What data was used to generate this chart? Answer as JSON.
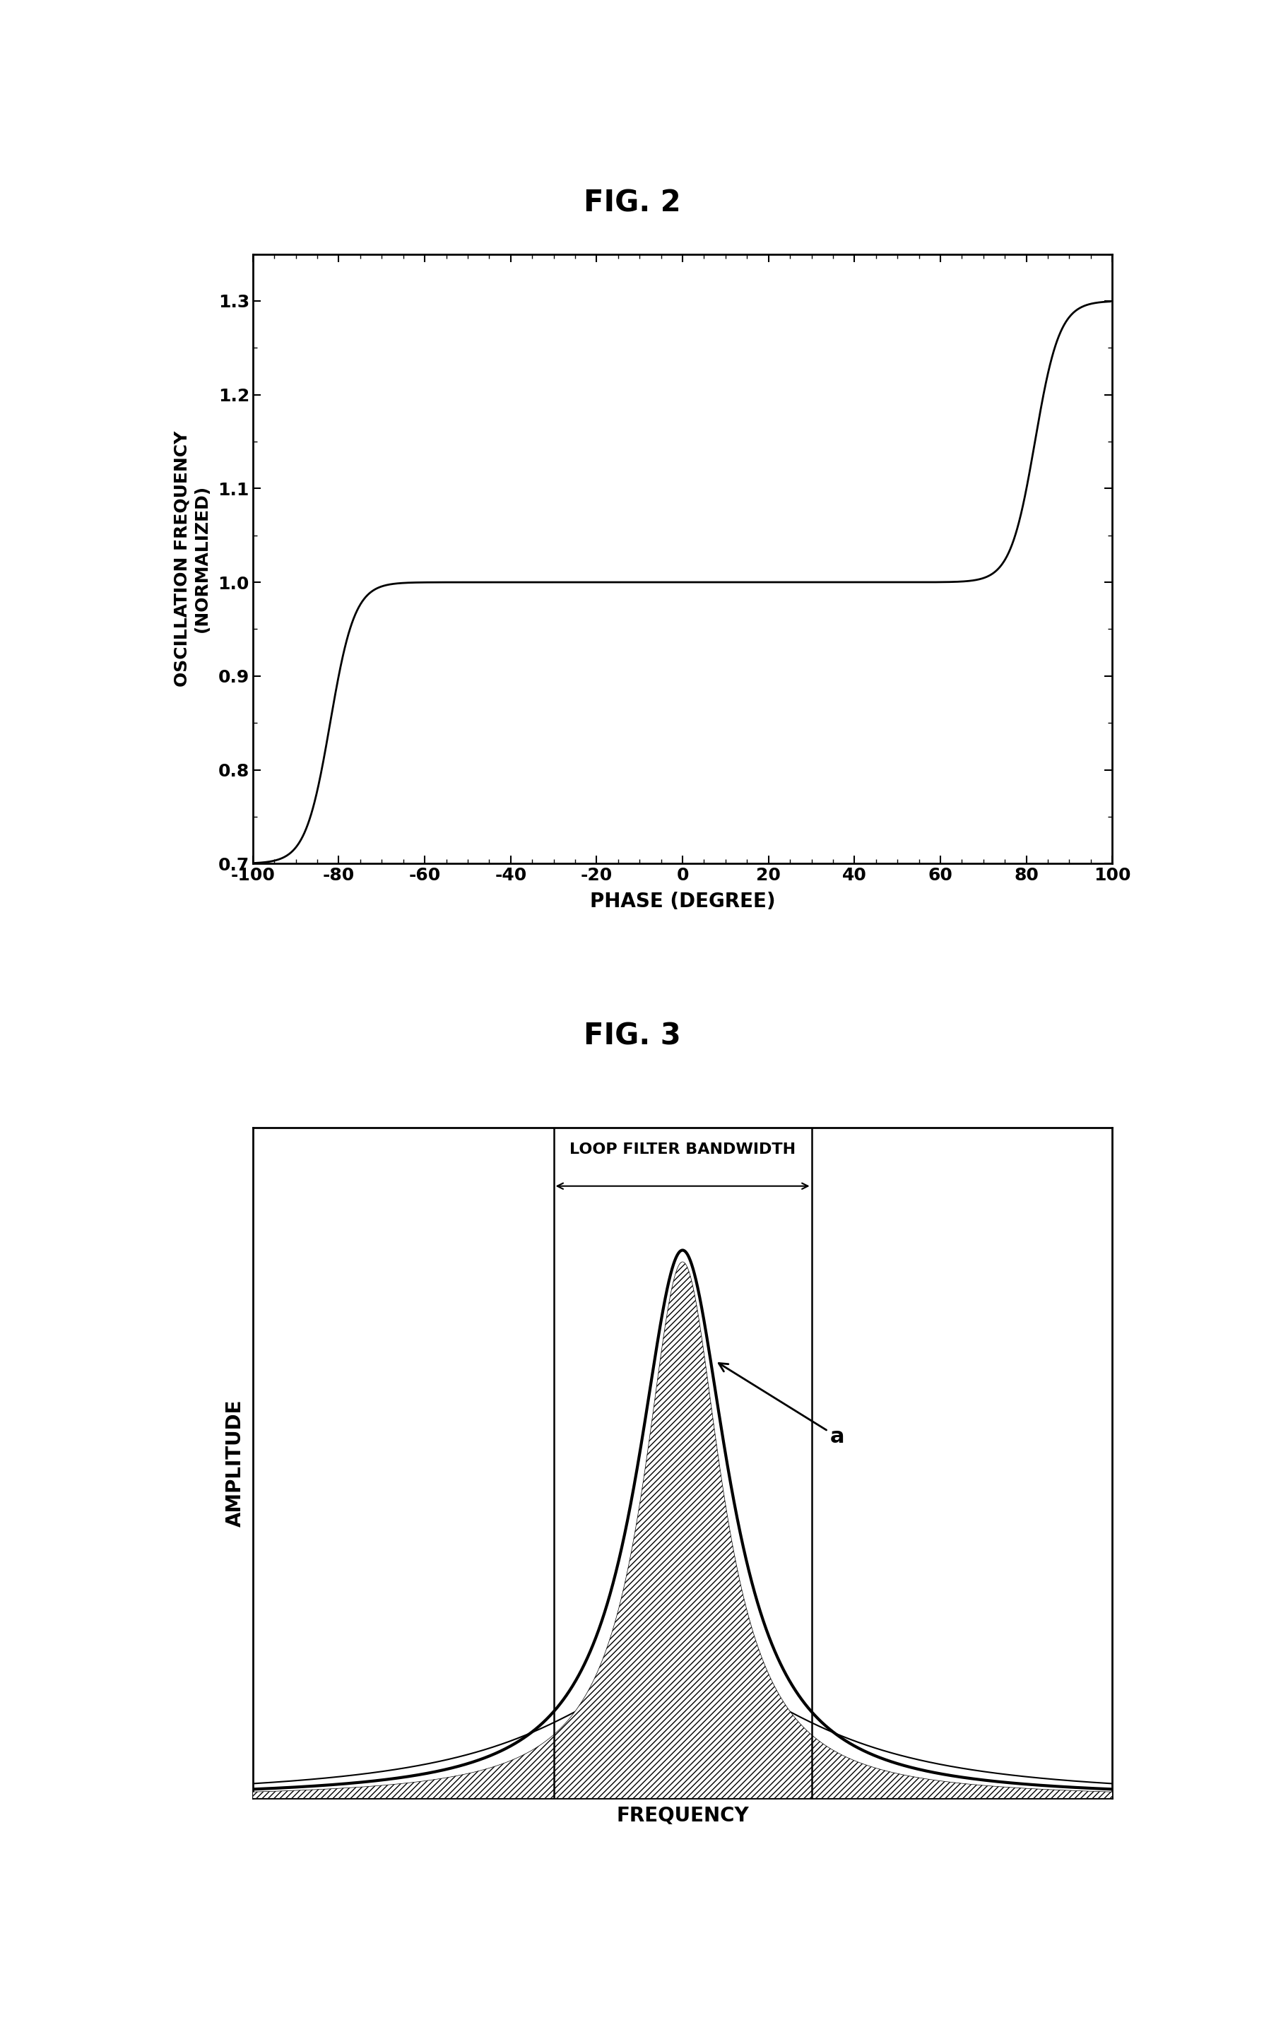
{
  "fig2_title": "FIG. 2",
  "fig3_title": "FIG. 3",
  "fig2_xlabel": "PHASE (DEGREE)",
  "fig2_ylabel1": "OSCILLATION FREQUENCY",
  "fig2_ylabel2": "(NORMALIZED)",
  "fig2_xlim": [
    -100,
    100
  ],
  "fig2_ylim": [
    0.7,
    1.35
  ],
  "fig2_xticks": [
    -100,
    -80,
    -60,
    -40,
    -20,
    0,
    20,
    40,
    60,
    80,
    100
  ],
  "fig2_yticks": [
    0.7,
    0.8,
    0.9,
    1.0,
    1.1,
    1.2,
    1.3
  ],
  "fig3_xlabel": "FREQUENCY",
  "fig3_ylabel": "AMPLITUDE",
  "arrow_label": "a",
  "loop_filter_label": "LOOP FILTER BANDWIDTH",
  "background_color": "#ffffff",
  "line_color": "#000000",
  "fig2_curve_k": 0.35,
  "fig2_curve_shift": 82,
  "fig2_curve_amp": 0.3
}
